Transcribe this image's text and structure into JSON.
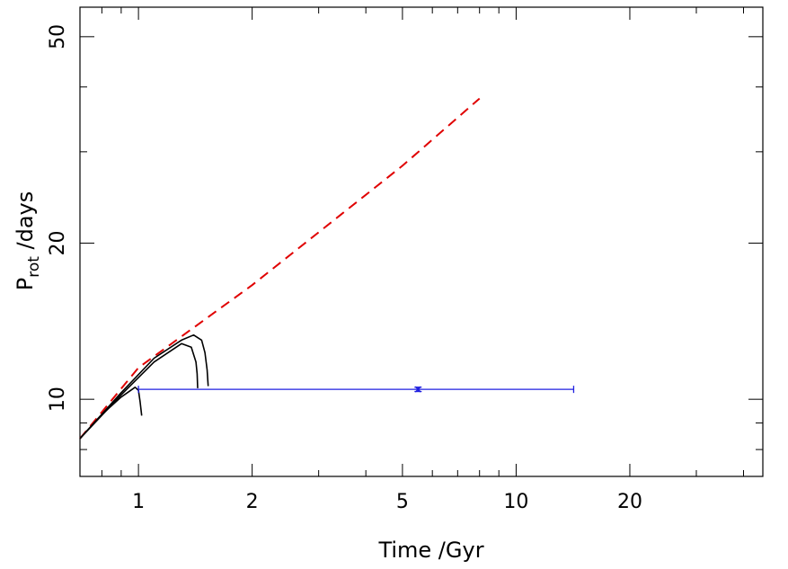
{
  "chart_data": {
    "type": "line",
    "xlabel": "Time /Gyr",
    "ylabel_main": "P",
    "ylabel_sub": "rot",
    "ylabel_rest": " /days",
    "x_scale": "log",
    "y_scale": "log",
    "xlim": [
      0.7,
      45
    ],
    "ylim": [
      7.1,
      57
    ],
    "x_major_ticks": [
      1,
      2,
      5,
      10,
      20
    ],
    "x_tick_labels": [
      "1",
      "2",
      "5",
      "10",
      "20"
    ],
    "x_minor_ticks": [
      0.7,
      0.8,
      0.9,
      3,
      4,
      6,
      7,
      8,
      9,
      30,
      40
    ],
    "y_major_ticks": [
      10,
      20,
      50
    ],
    "y_tick_labels": [
      "10",
      "20",
      "50"
    ],
    "y_minor_ticks": [
      8,
      9,
      30,
      40
    ],
    "series": [
      {
        "style": "dashed",
        "color": "#e00000",
        "x": [
          0.7,
          1.0,
          2.0,
          5.0,
          8.0
        ],
        "y": [
          8.4,
          11.5,
          16.6,
          28.2,
          38.0
        ]
      },
      {
        "style": "solid",
        "color": "#000000",
        "x": [
          0.7,
          0.8,
          0.9,
          0.98,
          1.0,
          1.01,
          1.02
        ],
        "y": [
          8.4,
          9.35,
          10.1,
          10.55,
          10.4,
          9.9,
          9.3
        ]
      },
      {
        "style": "solid",
        "color": "#000000",
        "x": [
          0.7,
          0.9,
          1.1,
          1.3,
          1.38,
          1.42,
          1.43,
          1.435
        ],
        "y": [
          8.4,
          10.2,
          11.8,
          12.8,
          12.6,
          11.8,
          11.2,
          10.5
        ]
      },
      {
        "style": "solid",
        "color": "#000000",
        "x": [
          0.7,
          0.9,
          1.1,
          1.3,
          1.4,
          1.47,
          1.5,
          1.52,
          1.53
        ],
        "y": [
          8.4,
          10.3,
          12.0,
          13.0,
          13.3,
          13.0,
          12.3,
          11.4,
          10.6
        ]
      }
    ],
    "point": {
      "color": "#1f1fe0",
      "x": 5.5,
      "y": 10.45,
      "x_err": [
        1.0,
        14.2
      ],
      "y_err": [
        10.35,
        10.55
      ]
    }
  }
}
